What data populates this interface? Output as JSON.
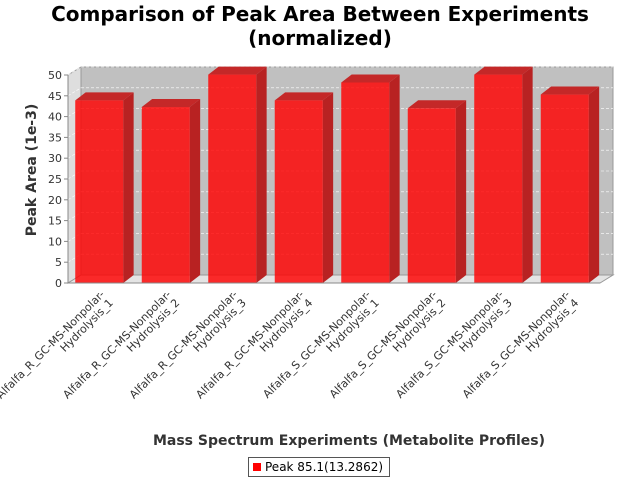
{
  "chart_data": {
    "type": "bar",
    "title": "Comparison of Peak Area Between Experiments",
    "subtitle": "(normalized)",
    "xlabel": "Mass Spectrum Experiments (Metabolite Profiles)",
    "ylabel": "Peak Area (1e-3)",
    "ylim": [
      0,
      50
    ],
    "yticks": [
      0,
      5,
      10,
      15,
      20,
      25,
      30,
      35,
      40,
      45,
      50
    ],
    "grid": true,
    "legend_position": "bottom",
    "categories": [
      [
        "Alfalfa_R_GC-MS-Nonpolar-",
        "Hydrolysis_1"
      ],
      [
        "Alfalfa_R_GC-MS-Nonpolar-",
        "Hydrolysis_2"
      ],
      [
        "Alfalfa_R_GC-MS-Nonpolar-",
        "Hydrolysis_3"
      ],
      [
        "Alfalfa_R_GC-MS-Nonpolar-",
        "Hydrolysis_4"
      ],
      [
        "Alfalfa_S_GC-MS-Nonpolar-",
        "Hydrolysis_1"
      ],
      [
        "Alfalfa_S_GC-MS-Nonpolar-",
        "Hydrolysis_2"
      ],
      [
        "Alfalfa_S_GC-MS-Nonpolar-",
        "Hydrolysis_3"
      ],
      [
        "Alfalfa_S_GC-MS-Nonpolar-",
        "Hydrolysis_4"
      ]
    ],
    "series": [
      {
        "name": "Peak 85.1(13.2862)",
        "color": "#ff0000",
        "values": [
          43.9,
          42.3,
          50.1,
          43.9,
          48.2,
          42.0,
          50.1,
          45.3
        ]
      }
    ]
  }
}
